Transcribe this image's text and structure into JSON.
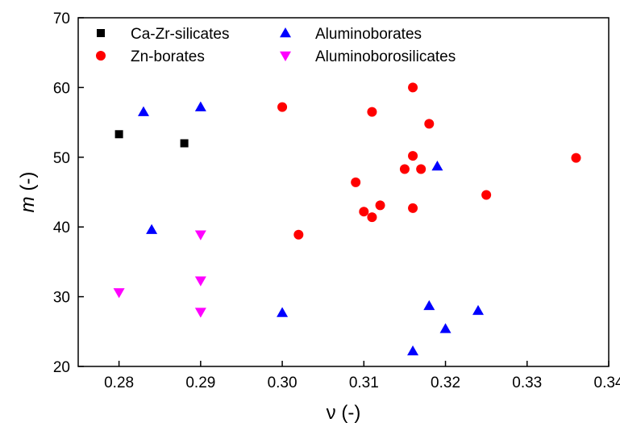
{
  "chart_data": {
    "type": "scatter",
    "title": "",
    "xlabel_symbol": "ν",
    "xlabel_unit": " (-)",
    "ylabel_symbol": "m",
    "ylabel_unit": " (-)",
    "xlim": [
      0.275,
      0.34
    ],
    "ylim": [
      20,
      70
    ],
    "xticks": [
      "0.28",
      "0.29",
      "0.30",
      "0.31",
      "0.32",
      "0.33",
      "0.34"
    ],
    "xtick_values": [
      0.28,
      0.29,
      0.3,
      0.31,
      0.32,
      0.33,
      0.34
    ],
    "yticks": [
      "20",
      "30",
      "40",
      "50",
      "60",
      "70"
    ],
    "ytick_values": [
      20,
      30,
      40,
      50,
      60,
      70
    ],
    "grid": false,
    "legend_position": "top-left",
    "series": [
      {
        "name": "Ca-Zr-silicates",
        "marker": "square",
        "color": "#000000",
        "points": [
          [
            0.28,
            53.3
          ],
          [
            0.288,
            52.0
          ]
        ]
      },
      {
        "name": "Zn-borates",
        "marker": "circle",
        "color": "#ff0000",
        "points": [
          [
            0.3,
            57.2
          ],
          [
            0.302,
            38.9
          ],
          [
            0.309,
            46.4
          ],
          [
            0.31,
            42.2
          ],
          [
            0.311,
            56.5
          ],
          [
            0.311,
            41.4
          ],
          [
            0.312,
            43.1
          ],
          [
            0.315,
            48.3
          ],
          [
            0.316,
            60.0
          ],
          [
            0.316,
            50.2
          ],
          [
            0.316,
            42.7
          ],
          [
            0.317,
            48.3
          ],
          [
            0.318,
            54.8
          ],
          [
            0.325,
            44.6
          ],
          [
            0.336,
            49.9
          ]
        ]
      },
      {
        "name": "Aluminoborates",
        "marker": "triangle-up",
        "color": "#0000ff",
        "points": [
          [
            0.283,
            56.5
          ],
          [
            0.284,
            39.6
          ],
          [
            0.29,
            57.2
          ],
          [
            0.3,
            27.7
          ],
          [
            0.316,
            22.2
          ],
          [
            0.318,
            28.7
          ],
          [
            0.319,
            48.7
          ],
          [
            0.32,
            25.4
          ],
          [
            0.324,
            28.0
          ]
        ]
      },
      {
        "name": "Aluminoborosilicates",
        "marker": "triangle-down",
        "color": "#ff00ff",
        "points": [
          [
            0.28,
            30.6
          ],
          [
            0.29,
            38.9
          ],
          [
            0.29,
            32.3
          ],
          [
            0.29,
            27.8
          ]
        ]
      }
    ]
  }
}
